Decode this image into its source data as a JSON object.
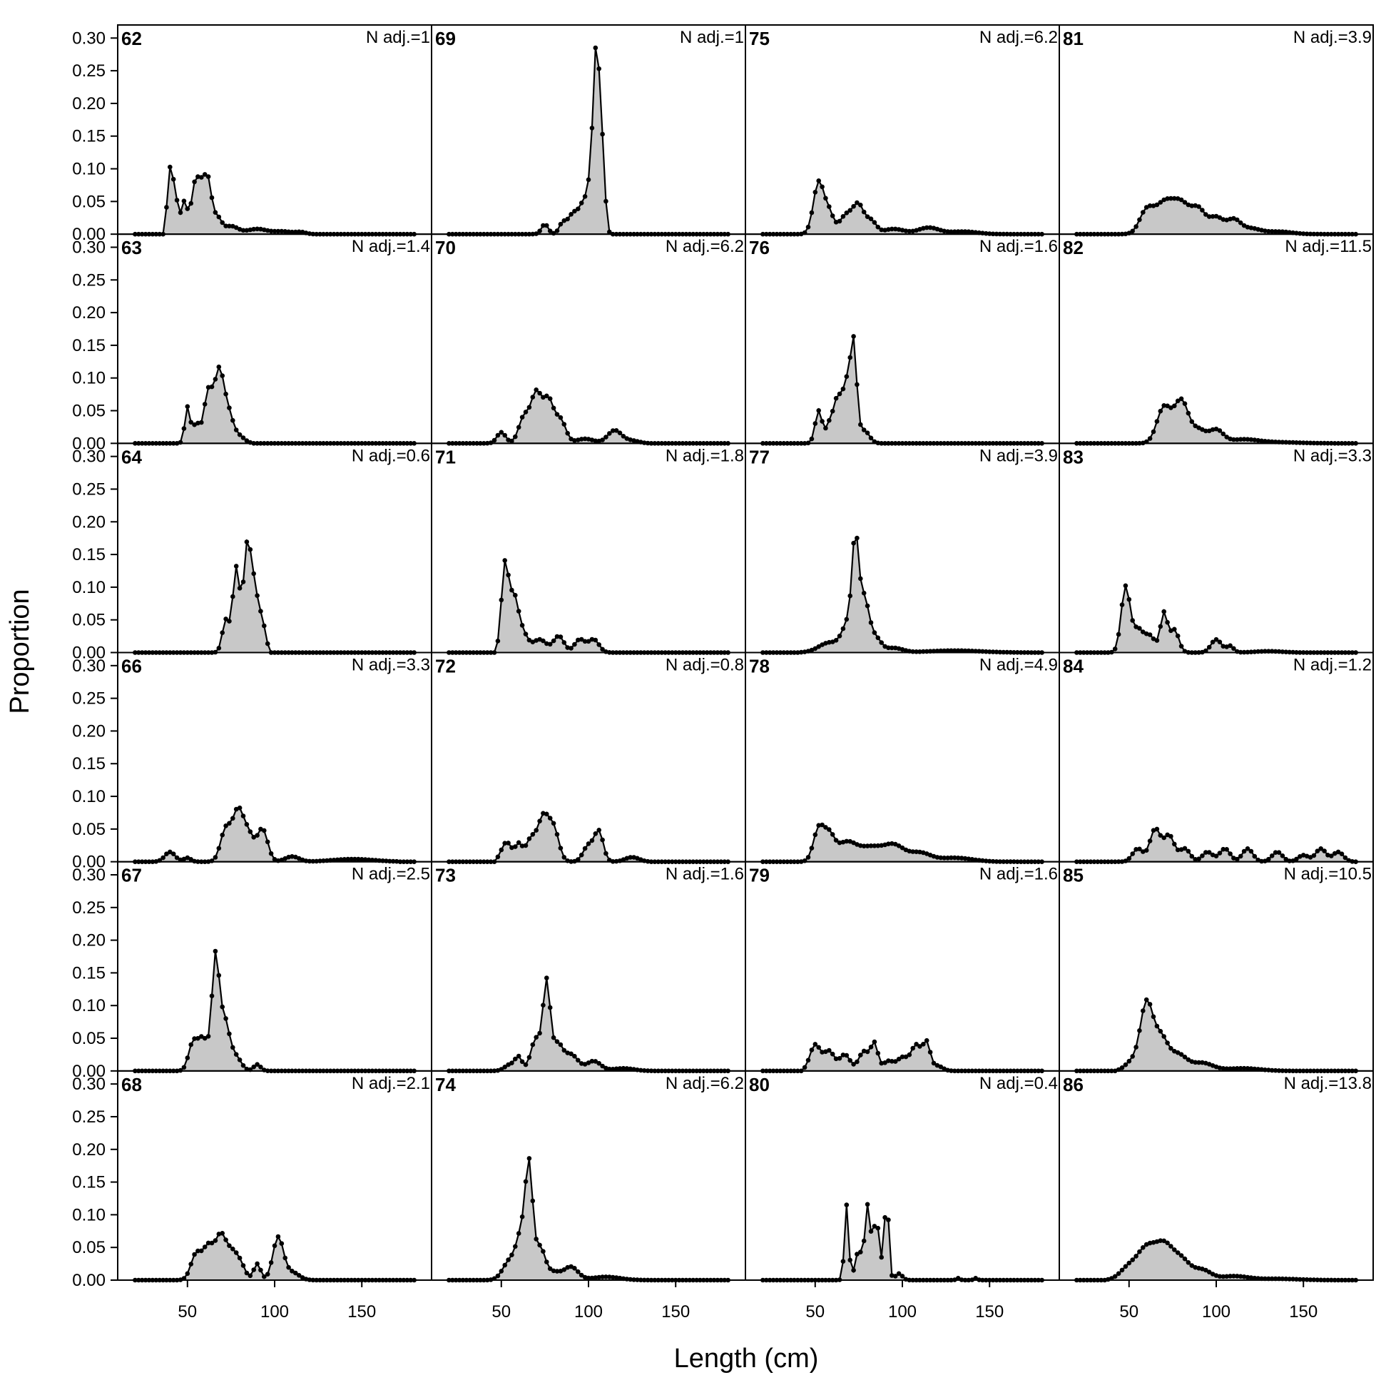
{
  "chart_data": {
    "type": "area",
    "xlabel": "Length (cm)",
    "ylabel": "Proportion",
    "x_ticks": [
      50,
      100,
      150
    ],
    "y_ticks": [
      "0.00",
      "0.05",
      "0.10",
      "0.15",
      "0.20",
      "0.25",
      "0.30"
    ],
    "xlim": [
      10,
      190
    ],
    "ylim": [
      0,
      0.32
    ],
    "layout": {
      "columns": 4,
      "rows": 6,
      "order": "column-major"
    },
    "style": {
      "fill": "#c8c8c8",
      "line": "#000000"
    },
    "bin_start": 20,
    "bin_step": 2,
    "bin_end": 180,
    "panels": [
      {
        "label": "62",
        "nadj_text": "N adj.=1",
        "peaks": [
          [
            40,
            0.1,
            1.5
          ],
          [
            43,
            0.06,
            1.2
          ],
          [
            48,
            0.05,
            2
          ],
          [
            54,
            0.06,
            2
          ],
          [
            58,
            0.07,
            2.5
          ],
          [
            62,
            0.065,
            2
          ],
          [
            67,
            0.025,
            2.5
          ],
          [
            75,
            0.012,
            4
          ],
          [
            90,
            0.008,
            6
          ],
          [
            105,
            0.004,
            5
          ],
          [
            115,
            0.003,
            3
          ]
        ],
        "start": 38,
        "end": 122
      },
      {
        "label": "63",
        "nadj_text": "N adj.=1.4",
        "peaks": [
          [
            50,
            0.055,
            1.5
          ],
          [
            55,
            0.03,
            2
          ],
          [
            62,
            0.08,
            2.5
          ],
          [
            68,
            0.1,
            2.5
          ],
          [
            73,
            0.05,
            3
          ],
          [
            80,
            0.01,
            3
          ]
        ],
        "start": 38,
        "end": 86
      },
      {
        "label": "64",
        "nadj_text": "N adj.=0.6",
        "peaks": [
          [
            72,
            0.05,
            2
          ],
          [
            78,
            0.13,
            2
          ],
          [
            84,
            0.14,
            2
          ],
          [
            88,
            0.1,
            2.5
          ],
          [
            93,
            0.04,
            2
          ]
        ],
        "start": 64,
        "end": 96
      },
      {
        "label": "66",
        "nadj_text": "N adj.=3.3",
        "peaks": [
          [
            40,
            0.015,
            3
          ],
          [
            50,
            0.006,
            2
          ],
          [
            72,
            0.05,
            3
          ],
          [
            79,
            0.075,
            3
          ],
          [
            85,
            0.04,
            3
          ],
          [
            93,
            0.05,
            3
          ],
          [
            110,
            0.008,
            4
          ],
          [
            145,
            0.004,
            12
          ]
        ],
        "start": 32,
        "end": 170
      },
      {
        "label": "67",
        "nadj_text": "N adj.=2.5",
        "peaks": [
          [
            53,
            0.04,
            2.5
          ],
          [
            59,
            0.05,
            3
          ],
          [
            66,
            0.16,
            2
          ],
          [
            71,
            0.08,
            3
          ],
          [
            78,
            0.02,
            3
          ],
          [
            90,
            0.01,
            2
          ]
        ],
        "start": 46,
        "end": 130
      },
      {
        "label": "68",
        "nadj_text": "N adj.=2.1",
        "peaks": [
          [
            55,
            0.04,
            3
          ],
          [
            62,
            0.05,
            3
          ],
          [
            69,
            0.065,
            3
          ],
          [
            75,
            0.035,
            3
          ],
          [
            80,
            0.025,
            3
          ],
          [
            90,
            0.025,
            2
          ],
          [
            102,
            0.065,
            3
          ],
          [
            110,
            0.012,
            4
          ]
        ],
        "start": 44,
        "end": 124
      },
      {
        "label": "69",
        "nadj_text": "N adj.=1",
        "peaks": [
          [
            75,
            0.015,
            2
          ],
          [
            85,
            0.015,
            2
          ],
          [
            91,
            0.03,
            3
          ],
          [
            98,
            0.05,
            3
          ],
          [
            103,
            0.13,
            2
          ],
          [
            105,
            0.2,
            1.5
          ],
          [
            108,
            0.12,
            1.5
          ]
        ],
        "start": 68,
        "end": 112
      },
      {
        "label": "70",
        "nadj_text": "N adj.=6.2",
        "peaks": [
          [
            50,
            0.017,
            2.5
          ],
          [
            63,
            0.04,
            3
          ],
          [
            70,
            0.075,
            3
          ],
          [
            77,
            0.065,
            3
          ],
          [
            84,
            0.035,
            3
          ],
          [
            98,
            0.007,
            5
          ],
          [
            115,
            0.02,
            4
          ],
          [
            125,
            0.004,
            4
          ]
        ],
        "start": 36,
        "end": 135
      },
      {
        "label": "71",
        "nadj_text": "N adj.=1.8",
        "peaks": [
          [
            52,
            0.13,
            2
          ],
          [
            57,
            0.08,
            2.5
          ],
          [
            62,
            0.03,
            3
          ],
          [
            72,
            0.02,
            4
          ],
          [
            83,
            0.025,
            3
          ],
          [
            95,
            0.02,
            3
          ],
          [
            103,
            0.02,
            3
          ]
        ],
        "start": 48,
        "end": 112
      },
      {
        "label": "72",
        "nadj_text": "N adj.=0.8",
        "peaks": [
          [
            53,
            0.03,
            3
          ],
          [
            60,
            0.025,
            2
          ],
          [
            67,
            0.035,
            3
          ],
          [
            74,
            0.065,
            3
          ],
          [
            80,
            0.05,
            3
          ],
          [
            100,
            0.025,
            3
          ],
          [
            106,
            0.045,
            2.5
          ],
          [
            125,
            0.007,
            4
          ]
        ],
        "start": 48,
        "end": 135
      },
      {
        "label": "73",
        "nadj_text": "N adj.=1.6",
        "peaks": [
          [
            55,
            0.01,
            3
          ],
          [
            60,
            0.02,
            2
          ],
          [
            70,
            0.05,
            3
          ],
          [
            76,
            0.13,
            2
          ],
          [
            82,
            0.04,
            3
          ],
          [
            90,
            0.025,
            4
          ],
          [
            103,
            0.015,
            4
          ],
          [
            120,
            0.004,
            6
          ]
        ],
        "start": 46,
        "end": 160
      },
      {
        "label": "74",
        "nadj_text": "N adj.=6.2",
        "peaks": [
          [
            55,
            0.03,
            4
          ],
          [
            62,
            0.07,
            3
          ],
          [
            66,
            0.15,
            2
          ],
          [
            72,
            0.05,
            3
          ],
          [
            80,
            0.012,
            4
          ],
          [
            90,
            0.02,
            4
          ],
          [
            110,
            0.005,
            8
          ]
        ],
        "start": 42,
        "end": 160
      },
      {
        "label": "75",
        "nadj_text": "N adj.=6.2",
        "peaks": [
          [
            52,
            0.08,
            3
          ],
          [
            58,
            0.03,
            2.5
          ],
          [
            68,
            0.03,
            4
          ],
          [
            75,
            0.04,
            3
          ],
          [
            82,
            0.02,
            3
          ],
          [
            95,
            0.008,
            6
          ],
          [
            115,
            0.01,
            6
          ],
          [
            135,
            0.004,
            8
          ]
        ],
        "start": 42,
        "end": 170
      },
      {
        "label": "76",
        "nadj_text": "N adj.=1.6",
        "peaks": [
          [
            52,
            0.05,
            2
          ],
          [
            58,
            0.025,
            2
          ],
          [
            63,
            0.07,
            2.5
          ],
          [
            68,
            0.08,
            2
          ],
          [
            72,
            0.15,
            1.8
          ],
          [
            78,
            0.02,
            3
          ]
        ],
        "start": 46,
        "end": 92
      },
      {
        "label": "77",
        "nadj_text": "N adj.=3.9",
        "peaks": [
          [
            58,
            0.015,
            6
          ],
          [
            70,
            0.05,
            4
          ],
          [
            73,
            0.13,
            1.8
          ],
          [
            78,
            0.08,
            3
          ],
          [
            85,
            0.02,
            3
          ],
          [
            95,
            0.007,
            5
          ],
          [
            130,
            0.003,
            15
          ]
        ],
        "start": 42,
        "end": 172
      },
      {
        "label": "78",
        "nadj_text": "N adj.=4.9",
        "peaks": [
          [
            52,
            0.05,
            3
          ],
          [
            58,
            0.035,
            3
          ],
          [
            68,
            0.03,
            6
          ],
          [
            82,
            0.02,
            6
          ],
          [
            95,
            0.025,
            6
          ],
          [
            110,
            0.013,
            6
          ],
          [
            130,
            0.006,
            10
          ]
        ],
        "start": 40,
        "end": 172
      },
      {
        "label": "79",
        "nadj_text": "N adj.=1.6",
        "peaks": [
          [
            50,
            0.04,
            3
          ],
          [
            58,
            0.03,
            3
          ],
          [
            67,
            0.025,
            3
          ],
          [
            78,
            0.03,
            3
          ],
          [
            84,
            0.04,
            2
          ],
          [
            92,
            0.015,
            3
          ],
          [
            100,
            0.02,
            3
          ],
          [
            108,
            0.04,
            3
          ],
          [
            114,
            0.04,
            2
          ],
          [
            120,
            0.008,
            3
          ]
        ],
        "start": 44,
        "end": 150
      },
      {
        "label": "80",
        "nadj_text": "N adj.=0.4",
        "peaks": [
          [
            68,
            0.115,
            1.2
          ],
          [
            75,
            0.045,
            2
          ],
          [
            80,
            0.11,
            1.5
          ],
          [
            85,
            0.09,
            2
          ],
          [
            91,
            0.13,
            1.2
          ],
          [
            98,
            0.01,
            2
          ],
          [
            132,
            0.003,
            1
          ],
          [
            142,
            0.003,
            1
          ]
        ],
        "start": 60,
        "end": 150
      },
      {
        "label": "81",
        "nadj_text": "N adj.=3.9",
        "peaks": [
          [
            60,
            0.035,
            4
          ],
          [
            70,
            0.045,
            5
          ],
          [
            80,
            0.045,
            5
          ],
          [
            90,
            0.035,
            4
          ],
          [
            100,
            0.025,
            4
          ],
          [
            110,
            0.022,
            4
          ],
          [
            120,
            0.008,
            5
          ],
          [
            135,
            0.004,
            8
          ]
        ],
        "start": 46,
        "end": 175
      },
      {
        "label": "82",
        "nadj_text": "N adj.=11.5",
        "peaks": [
          [
            70,
            0.055,
            4
          ],
          [
            80,
            0.065,
            4
          ],
          [
            90,
            0.02,
            4
          ],
          [
            100,
            0.02,
            4
          ],
          [
            115,
            0.005,
            8
          ],
          [
            130,
            0.002,
            15
          ]
        ],
        "start": 46,
        "end": 178
      },
      {
        "label": "83",
        "nadj_text": "N adj.=3.3",
        "peaks": [
          [
            48,
            0.1,
            2.5
          ],
          [
            55,
            0.035,
            3
          ],
          [
            62,
            0.025,
            3
          ],
          [
            70,
            0.06,
            2
          ],
          [
            76,
            0.035,
            2.5
          ],
          [
            100,
            0.02,
            3
          ],
          [
            108,
            0.01,
            2
          ],
          [
            130,
            0.002,
            8
          ]
        ],
        "start": 40,
        "end": 175
      },
      {
        "label": "84",
        "nadj_text": "N adj.=1.2",
        "peaks": [
          [
            55,
            0.02,
            3
          ],
          [
            65,
            0.05,
            3
          ],
          [
            73,
            0.04,
            3
          ],
          [
            82,
            0.02,
            3
          ],
          [
            95,
            0.015,
            3
          ],
          [
            105,
            0.02,
            3
          ],
          [
            118,
            0.02,
            3
          ],
          [
            135,
            0.015,
            3
          ],
          [
            150,
            0.01,
            3
          ],
          [
            160,
            0.02,
            3
          ],
          [
            170,
            0.015,
            3
          ]
        ],
        "start": 40,
        "end": 178
      },
      {
        "label": "85",
        "nadj_text": "N adj.=10.5",
        "peaks": [
          [
            52,
            0.015,
            4
          ],
          [
            60,
            0.1,
            3.5
          ],
          [
            68,
            0.05,
            4
          ],
          [
            78,
            0.025,
            5
          ],
          [
            92,
            0.012,
            6
          ],
          [
            115,
            0.004,
            10
          ]
        ],
        "start": 44,
        "end": 178
      },
      {
        "label": "86",
        "nadj_text": "N adj.=13.8",
        "peaks": [
          [
            50,
            0.02,
            5
          ],
          [
            60,
            0.045,
            5
          ],
          [
            70,
            0.05,
            5
          ],
          [
            80,
            0.03,
            5
          ],
          [
            92,
            0.015,
            5
          ],
          [
            110,
            0.006,
            8
          ],
          [
            135,
            0.002,
            12
          ]
        ],
        "start": 38,
        "end": 178
      }
    ]
  }
}
